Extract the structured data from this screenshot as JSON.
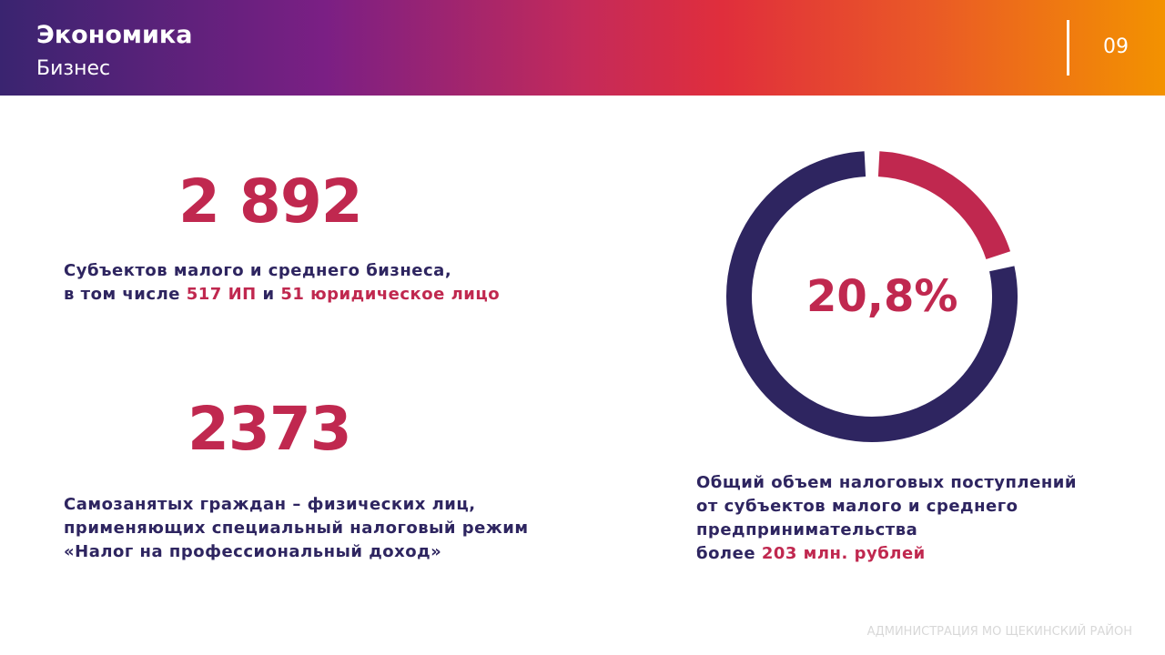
{
  "header": {
    "title": "Экономика",
    "subtitle": "Бизнес",
    "page_number": "09"
  },
  "stats": {
    "smb_count": "2 892",
    "smb_line1": "Субъектов малого и среднего бизнеса,",
    "smb_line2_prefix": "в том числе ",
    "smb_ip": "517 ИП",
    "smb_and": " и ",
    "smb_legal": "51 юридическое лицо",
    "selfemployed_count": "2373",
    "selfemployed_line1": "Самозанятых граждан – физических лиц,",
    "selfemployed_line2": "применяющих специальный налоговый режим",
    "selfemployed_line3": "«Налог на профессиональный доход»"
  },
  "tax": {
    "line1": "Общий объем налоговых поступлений",
    "line2": "от субъектов малого и среднего",
    "line3": "предпринимательства",
    "line4_prefix": "более ",
    "amount": "203 млн. рублей"
  },
  "chart_data": {
    "type": "pie",
    "label": "20,8%",
    "values": [
      20.8,
      79.2
    ],
    "colors": [
      "#c0284f",
      "#2e2560"
    ]
  },
  "footer": {
    "org": "АДМИНИСТРАЦИЯ  МО ЩЕКИНСКИЙ РАЙОН"
  },
  "colors": {
    "accent": "#c0284f",
    "primary": "#2e2560"
  }
}
